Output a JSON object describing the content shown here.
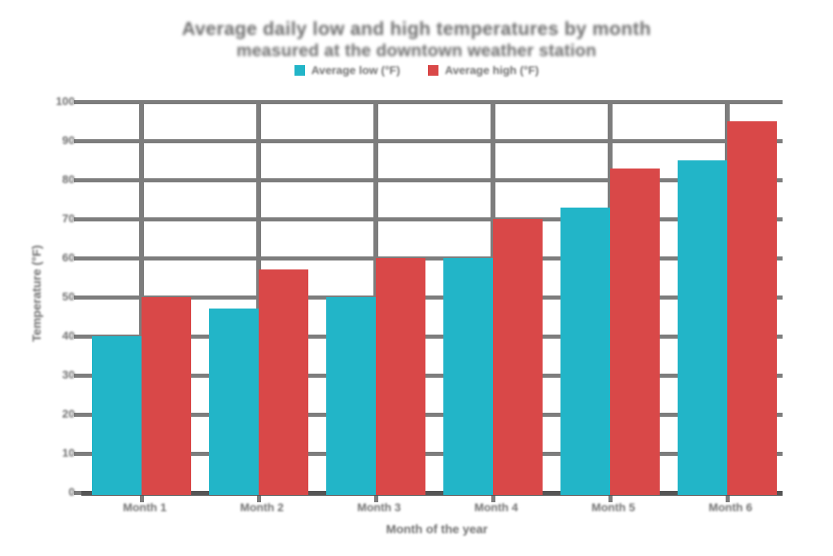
{
  "chart_data": {
    "type": "bar",
    "title_line1": "Average daily low and high temperatures by month",
    "title_line2": "measured at the downtown weather station",
    "categories": [
      "Month 1",
      "Month 2",
      "Month 3",
      "Month 4",
      "Month 5",
      "Month 6"
    ],
    "series": [
      {
        "name": "Average low (°F)",
        "color": "#22b5c8",
        "values": [
          40,
          47,
          50,
          60,
          73,
          85
        ]
      },
      {
        "name": "Average high (°F)",
        "color": "#d94848",
        "values": [
          50,
          57,
          60,
          70,
          83,
          95
        ]
      }
    ],
    "xlabel": "Month of the year",
    "ylabel": "Temperature (°F)",
    "ylim": [
      0,
      100
    ],
    "yticks": [
      0,
      10,
      20,
      30,
      40,
      50,
      60,
      70,
      80,
      90,
      100
    ],
    "grid": true,
    "legend_position": "top",
    "colors": {
      "series1": "#22b5c8",
      "series2": "#d94848",
      "gridline": "#7d7d7d",
      "axis": "#555555",
      "text": "#6e6e6e",
      "background": "#ffffff"
    }
  }
}
